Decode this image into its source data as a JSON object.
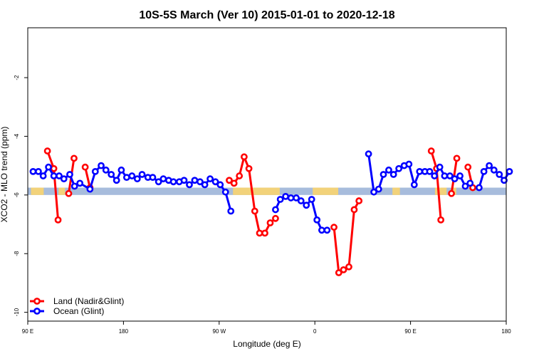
{
  "chart_data": {
    "type": "line",
    "title": "10S-5S March (Ver 10)   2015-01-01 to 2020-12-18",
    "xlabel": "Longitude (deg E)",
    "ylabel": "XCO2 - MLO trend (ppm)",
    "xlim": [
      90,
      540
    ],
    "ylim": [
      -10.3,
      -0.3
    ],
    "x_ticks": [
      {
        "value": 90,
        "label": "90 E"
      },
      {
        "value": 180,
        "label": "180"
      },
      {
        "value": 270,
        "label": "90 W"
      },
      {
        "value": 360,
        "label": "0"
      },
      {
        "value": 450,
        "label": "90 E"
      },
      {
        "value": 540,
        "label": "180"
      }
    ],
    "y_ticks": [
      {
        "value": -10,
        "label": "-10"
      },
      {
        "value": -8,
        "label": "-8"
      },
      {
        "value": -6,
        "label": "-6"
      },
      {
        "value": -4,
        "label": "-4"
      },
      {
        "value": -2,
        "label": "-2"
      }
    ],
    "grid": false,
    "legend_position": "bottom-left",
    "colors": {
      "land": "#ff0000",
      "ocean": "#0000ff",
      "band_ocean": "#a7bcdc",
      "band_land": "#f2d27a"
    },
    "map_band": {
      "y_range": [
        -6.0,
        -5.75
      ],
      "land_spans": [
        [
          93,
          105
        ],
        [
          119,
          125
        ],
        [
          283,
          327
        ],
        [
          358,
          382
        ],
        [
          433,
          440
        ],
        [
          473,
          484
        ],
        [
          488,
          493
        ]
      ]
    },
    "series": [
      {
        "name": "Land (Nadir&Glint)",
        "key": "land",
        "segments": [
          [
            [
              108.5,
              -4.5
            ],
            [
              114.5,
              -5.1
            ],
            [
              118.5,
              -6.85
            ]
          ],
          [
            [
              128.5,
              -5.95
            ],
            [
              133.5,
              -4.75
            ]
          ],
          [
            [
              144,
              -5.05
            ],
            [
              148.5,
              -5.75
            ]
          ],
          [
            [
              279.5,
              -5.5
            ],
            [
              284,
              -5.6
            ],
            [
              289,
              -5.35
            ],
            [
              293.5,
              -4.7
            ],
            [
              298,
              -5.1
            ],
            [
              303.5,
              -6.55
            ],
            [
              308,
              -7.3
            ],
            [
              313,
              -7.3
            ],
            [
              318,
              -6.95
            ],
            [
              323,
              -6.8
            ]
          ],
          [
            [
              378,
              -7.1
            ],
            [
              382.5,
              -8.65
            ],
            [
              387,
              -8.55
            ],
            [
              392,
              -8.45
            ],
            [
              397,
              -6.5
            ],
            [
              401.5,
              -6.2
            ]
          ],
          [
            [
              469.5,
              -4.5
            ],
            [
              474.5,
              -5.1
            ],
            [
              478.5,
              -6.85
            ]
          ],
          [
            [
              488.5,
              -5.95
            ],
            [
              493.5,
              -4.75
            ]
          ],
          [
            [
              504,
              -5.05
            ],
            [
              508.5,
              -5.75
            ]
          ]
        ]
      },
      {
        "name": "Ocean (Glint)",
        "key": "ocean",
        "segments": [
          [
            [
              95,
              -5.2
            ],
            [
              100,
              -5.2
            ],
            [
              104.5,
              -5.35
            ],
            [
              109.5,
              -5.05
            ],
            [
              114.5,
              -5.35
            ],
            [
              119.5,
              -5.35
            ],
            [
              124,
              -5.45
            ],
            [
              129.5,
              -5.3
            ],
            [
              134,
              -5.7
            ],
            [
              139,
              -5.6
            ],
            [
              148.5,
              -5.8
            ],
            [
              153.5,
              -5.2
            ],
            [
              159,
              -5.0
            ],
            [
              163.5,
              -5.15
            ],
            [
              168.5,
              -5.3
            ],
            [
              173.5,
              -5.5
            ],
            [
              178,
              -5.15
            ],
            [
              183,
              -5.4
            ],
            [
              188,
              -5.35
            ],
            [
              193,
              -5.45
            ],
            [
              197.5,
              -5.3
            ],
            [
              203,
              -5.4
            ],
            [
              207.5,
              -5.4
            ],
            [
              213,
              -5.55
            ],
            [
              217.5,
              -5.45
            ],
            [
              222.5,
              -5.5
            ],
            [
              227,
              -5.55
            ],
            [
              232.5,
              -5.55
            ],
            [
              237,
              -5.5
            ],
            [
              242,
              -5.65
            ],
            [
              247,
              -5.5
            ],
            [
              252,
              -5.55
            ],
            [
              256.5,
              -5.65
            ],
            [
              261.5,
              -5.45
            ],
            [
              266.5,
              -5.55
            ],
            [
              271,
              -5.65
            ],
            [
              276,
              -5.9
            ],
            [
              281,
              -6.55
            ]
          ],
          [
            [
              323,
              -6.5
            ],
            [
              327.5,
              -6.15
            ],
            [
              332.5,
              -6.05
            ],
            [
              337.5,
              -6.1
            ],
            [
              342.5,
              -6.1
            ],
            [
              347,
              -6.2
            ],
            [
              352,
              -6.35
            ],
            [
              357,
              -6.15
            ],
            [
              362,
              -6.85
            ],
            [
              366.5,
              -7.2
            ],
            [
              371.5,
              -7.2
            ]
          ],
          [
            [
              410.5,
              -4.6
            ],
            [
              415.5,
              -5.9
            ],
            [
              420,
              -5.8
            ],
            [
              424.5,
              -5.3
            ],
            [
              429.5,
              -5.15
            ],
            [
              434,
              -5.3
            ],
            [
              439,
              -5.1
            ],
            [
              444,
              -5.0
            ],
            [
              448.5,
              -4.95
            ],
            [
              453.5,
              -5.65
            ],
            [
              458.5,
              -5.2
            ],
            [
              463.5,
              -5.2
            ],
            [
              468,
              -5.2
            ],
            [
              472.5,
              -5.35
            ],
            [
              477.5,
              -5.05
            ],
            [
              482,
              -5.35
            ],
            [
              487,
              -5.35
            ],
            [
              491.5,
              -5.45
            ],
            [
              496.5,
              -5.35
            ],
            [
              501.5,
              -5.7
            ],
            [
              506,
              -5.6
            ]
          ],
          [
            [
              514.5,
              -5.75
            ],
            [
              519,
              -5.2
            ],
            [
              524,
              -5.0
            ],
            [
              528.5,
              -5.15
            ],
            [
              533.5,
              -5.3
            ],
            [
              538,
              -5.5
            ],
            [
              543,
              -5.2
            ]
          ]
        ]
      }
    ]
  }
}
